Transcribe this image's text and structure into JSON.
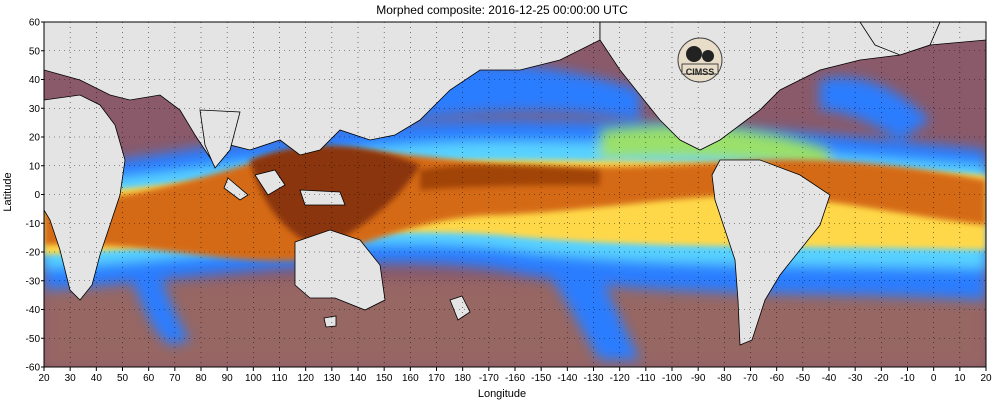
{
  "title": "Morphed composite: 2016-12-25 00:00:00 UTC",
  "xlabel": "Longitude",
  "ylabel": "Latitude",
  "x_ticks": [
    "20",
    "30",
    "40",
    "50",
    "60",
    "70",
    "80",
    "90",
    "100",
    "110",
    "120",
    "130",
    "140",
    "150",
    "160",
    "170",
    "180",
    "-170",
    "-160",
    "-150",
    "-140",
    "-130",
    "-120",
    "-110",
    "-100",
    "-90",
    "-80",
    "-70",
    "-60",
    "-50",
    "-40",
    "-30",
    "-20",
    "-10",
    "0",
    "10",
    "20"
  ],
  "y_ticks": [
    "60",
    "50",
    "40",
    "30",
    "20",
    "10",
    "0",
    "-10",
    "-20",
    "-30",
    "-40",
    "-50",
    "-60"
  ],
  "logo": {
    "text": "CIMSS",
    "icon": "cimss-logo-icon"
  },
  "colors": {
    "ocean_dry": "#8a5a6a",
    "ocean_dry_alt": "#a07060",
    "land": "#e4e4e4",
    "moist_blue": "#2a7dff",
    "moist_cyan": "#58d2ff",
    "moist_green": "#9ae06a",
    "moist_yellow": "#ffd84a",
    "moist_orange": "#d56a14",
    "moist_brown": "#8a3408"
  },
  "chart_data": {
    "type": "heatmap",
    "title": "Morphed composite: 2016-12-25 00:00:00 UTC",
    "xlabel": "Longitude",
    "ylabel": "Latitude",
    "xlim": [
      20,
      380
    ],
    "ylim": [
      -60,
      60
    ],
    "grid": true
  }
}
